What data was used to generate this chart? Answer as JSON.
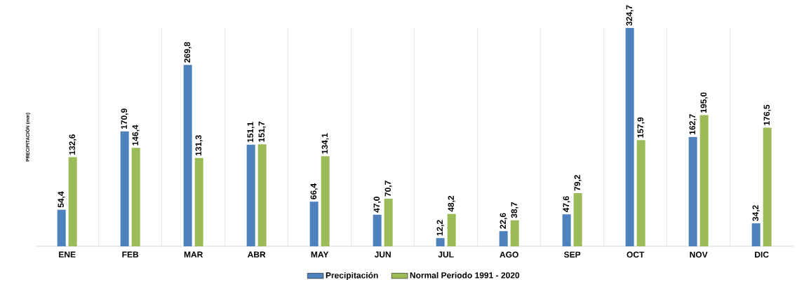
{
  "chart_data": {
    "type": "bar",
    "ylabel": "PRECIPITACIÓN (mm)",
    "categories": [
      "ENE",
      "FEB",
      "MAR",
      "ABR",
      "MAY",
      "JUN",
      "JUL",
      "AGO",
      "SEP",
      "OCT",
      "NOV",
      "DIC"
    ],
    "series": [
      {
        "name": "Precipitación",
        "color": "#4f81bd",
        "values": [
          54.4,
          170.9,
          269.8,
          151.1,
          66.4,
          47.0,
          12.2,
          22.6,
          47.6,
          324.7,
          162.7,
          34.2
        ],
        "value_labels": [
          "54,4",
          "170,9",
          "269,8",
          "151,1",
          "66,4",
          "47,0",
          "12,2",
          "22,6",
          "47,6",
          "324,7",
          "162,7",
          "34,2"
        ]
      },
      {
        "name": "Normal Periodo 1991 - 2020",
        "color": "#9bbb59",
        "values": [
          132.6,
          146.4,
          131.3,
          151.7,
          134.1,
          70.7,
          48.2,
          38.7,
          79.2,
          157.9,
          195.0,
          176.5
        ],
        "value_labels": [
          "132,6",
          "146,4",
          "131,3",
          "151,7",
          "134,1",
          "70,7",
          "48,2",
          "38,7",
          "79,2",
          "157,9",
          "195,0",
          "176,5"
        ]
      }
    ],
    "grid": "x",
    "legend": "bottom"
  }
}
